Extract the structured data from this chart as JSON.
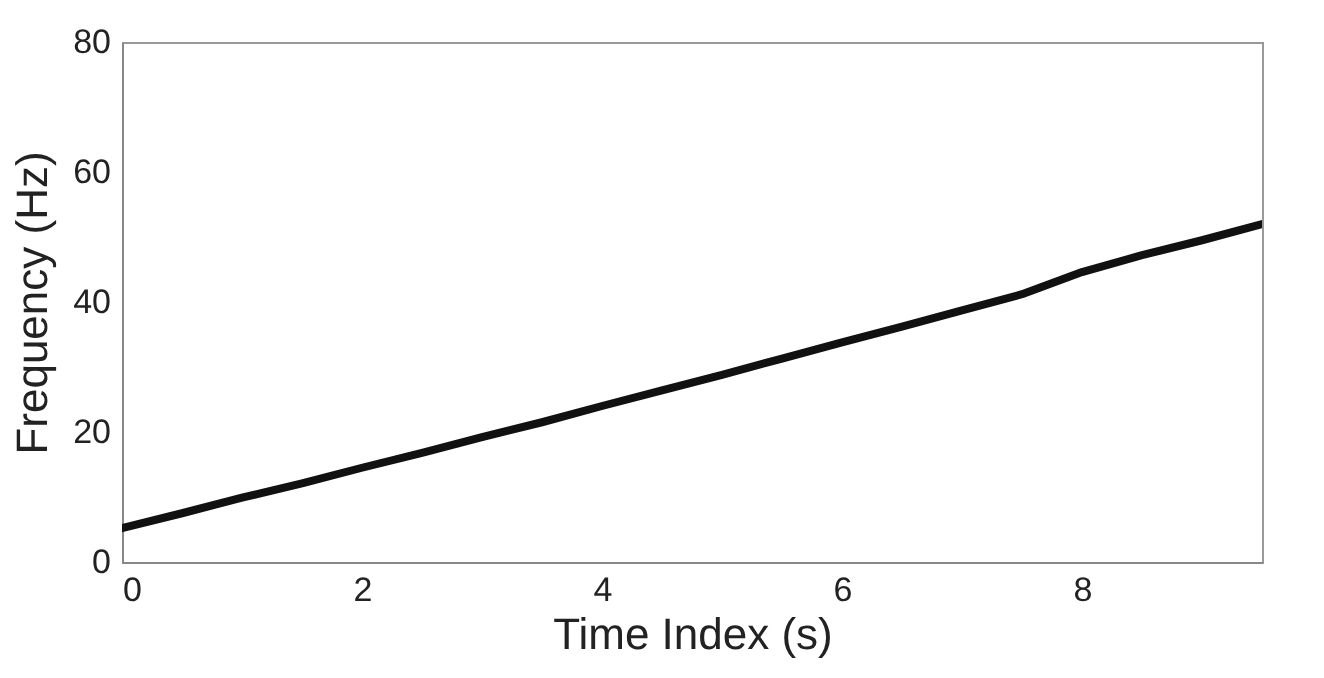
{
  "chart_data": {
    "type": "line",
    "xlabel": "Time Index (s)",
    "ylabel": "Frequency (Hz)",
    "x": [
      0,
      0.5,
      1,
      1.5,
      2,
      2.5,
      3,
      3.5,
      4,
      4.5,
      5,
      5.5,
      6,
      6.5,
      7,
      7.5,
      8,
      8.5,
      9,
      9.5
    ],
    "series": [
      {
        "color": "#111111",
        "values": [
          5.2,
          7.5,
          9.9,
          12.1,
          14.5,
          16.8,
          19.2,
          21.5,
          24,
          26.4,
          28.8,
          31.3,
          33.8,
          36.2,
          38.7,
          41.2,
          44.6,
          47.2,
          49.5,
          52
        ]
      }
    ],
    "xlim": [
      0,
      9.5
    ],
    "ylim": [
      0,
      80
    ],
    "xticks": [
      0,
      2,
      4,
      6,
      8
    ],
    "yticks": [
      0,
      20,
      40,
      60,
      80
    ],
    "line_style": "solid",
    "marker": "none"
  }
}
